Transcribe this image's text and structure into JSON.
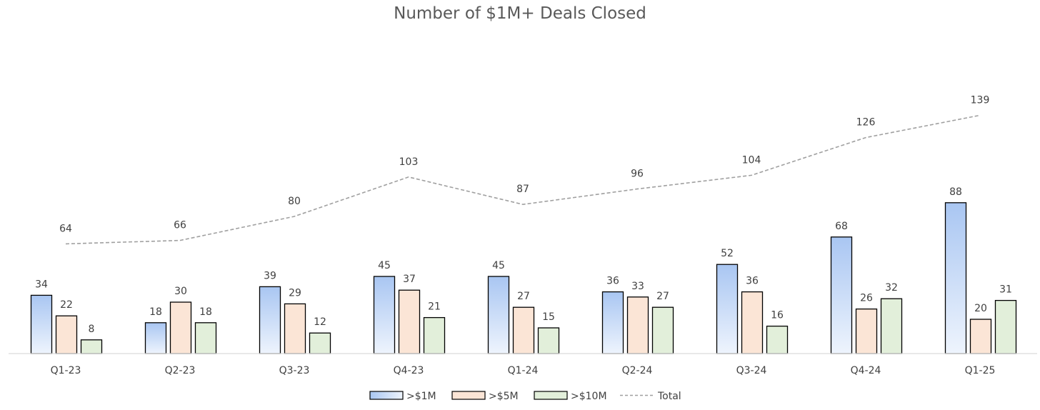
{
  "chart_data": {
    "type": "bar",
    "title": "Number of $1M+ Deals Closed",
    "xlabel": "",
    "ylabel": "",
    "categories": [
      "Q1-23",
      "Q2-23",
      "Q3-23",
      "Q4-23",
      "Q1-24",
      "Q2-24",
      "Q3-24",
      "Q4-24",
      "Q1-25"
    ],
    "series": [
      {
        "name": ">$1M",
        "kind": "bar",
        "values": [
          34,
          18,
          39,
          45,
          45,
          36,
          52,
          68,
          88
        ],
        "color_top": "#a9c6f2",
        "color_bottom": "#eef4fd"
      },
      {
        "name": ">$5M",
        "kind": "bar",
        "values": [
          22,
          30,
          29,
          37,
          27,
          33,
          36,
          26,
          20
        ],
        "color": "#fbe5d6"
      },
      {
        "name": ">$10M",
        "kind": "bar",
        "values": [
          8,
          18,
          12,
          21,
          15,
          27,
          16,
          32,
          31
        ],
        "color": "#e2efda"
      },
      {
        "name": "Total",
        "kind": "line",
        "style": "dashed",
        "values": [
          64,
          66,
          80,
          103,
          87,
          96,
          104,
          126,
          139
        ],
        "color": "#a0a0a0"
      }
    ],
    "ylim": [
      0,
      160
    ],
    "grid": false,
    "legend": "bottom-center",
    "data_labels": true
  }
}
